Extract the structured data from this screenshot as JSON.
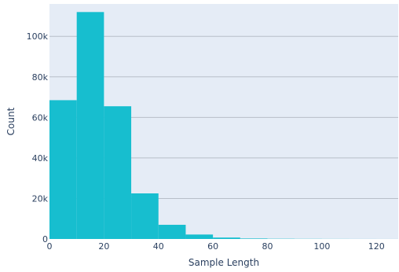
{
  "chart_data": {
    "type": "bar",
    "title": "",
    "xlabel": "Sample Length",
    "ylabel": "Count",
    "xlim": [
      0,
      128
    ],
    "ylim": [
      0,
      116000
    ],
    "x_ticks": [
      0,
      20,
      40,
      60,
      80,
      100,
      120
    ],
    "x_tick_labels": [
      "0",
      "20",
      "40",
      "60",
      "80",
      "100",
      "120"
    ],
    "y_ticks": [
      0,
      20000,
      40000,
      60000,
      80000,
      100000
    ],
    "y_tick_labels": [
      "0",
      "20k",
      "40k",
      "60k",
      "80k",
      "100k"
    ],
    "bin_width": 10,
    "bins": [
      {
        "x0": 0,
        "x1": 10,
        "value": 68500
      },
      {
        "x0": 10,
        "x1": 20,
        "value": 112000
      },
      {
        "x0": 20,
        "x1": 30,
        "value": 65500
      },
      {
        "x0": 30,
        "x1": 40,
        "value": 22500
      },
      {
        "x0": 40,
        "x1": 50,
        "value": 7000
      },
      {
        "x0": 50,
        "x1": 60,
        "value": 2200
      },
      {
        "x0": 60,
        "x1": 70,
        "value": 700
      },
      {
        "x0": 70,
        "x1": 80,
        "value": 250
      },
      {
        "x0": 80,
        "x1": 90,
        "value": 120
      },
      {
        "x0": 90,
        "x1": 100,
        "value": 70
      },
      {
        "x0": 100,
        "x1": 110,
        "value": 40
      },
      {
        "x0": 110,
        "x1": 120,
        "value": 25
      },
      {
        "x0": 120,
        "x1": 130,
        "value": 15
      }
    ],
    "grid": true,
    "colors": {
      "bar": "#17becf",
      "plot_bg": "#e5ecf6",
      "grid": "#b8bec8",
      "text": "#2a3f5f"
    }
  }
}
